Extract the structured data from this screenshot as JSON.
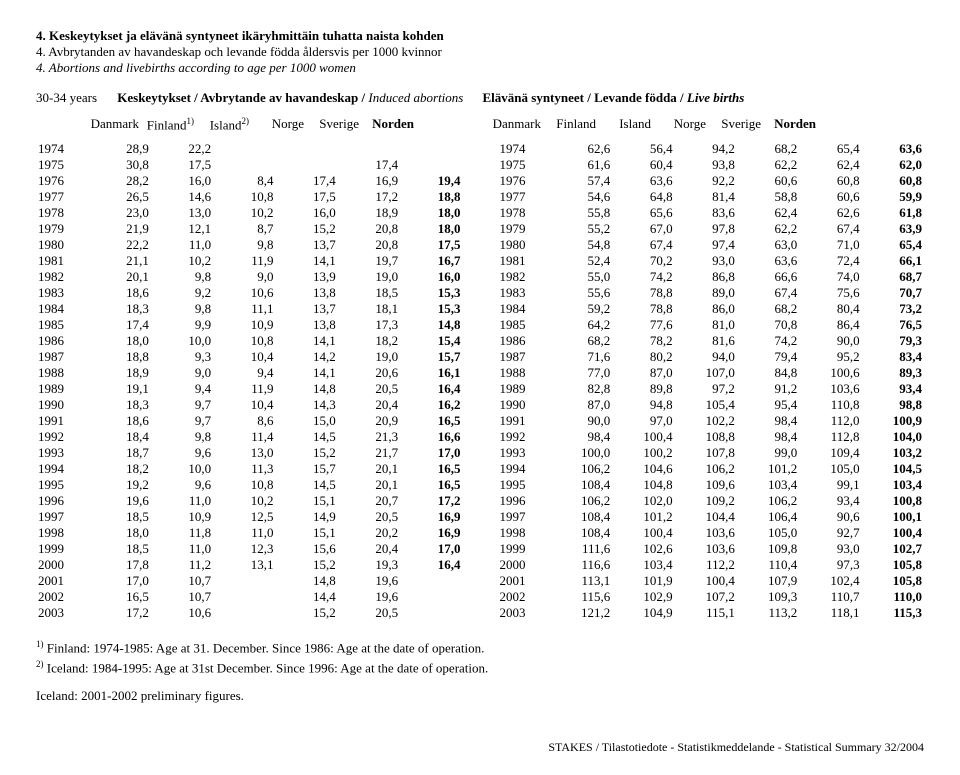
{
  "titles": {
    "fi": "4. Keskeytykset ja elävänä syntyneet ikäryhmittäin tuhatta naista kohden",
    "sv": "4. Avbrytanden av havandeskap och levande födda åldersvis per 1000 kvinnor",
    "en": "4. Abortions and livebirths according to age per 1000 women"
  },
  "subhead": {
    "age": "30-34 years",
    "left_plain": "Keskeytykset / Avbrytande av havandeskap / ",
    "left_italic": "Induced abortions",
    "right_plain": "Elävänä syntyneet / Levande födda / ",
    "right_italic": "Live births"
  },
  "columns": [
    "Danmark",
    "Finland",
    "Island",
    "Norge",
    "Sverige",
    "Norden",
    "Danmark",
    "Finland",
    "Island",
    "Norge",
    "Sverige",
    "Norden"
  ],
  "sup": {
    "fin": "1)",
    "isl": "2)"
  },
  "rows": [
    [
      "1974",
      "28,9",
      "22,2",
      "",
      "",
      "",
      "",
      "1974",
      "62,6",
      "56,4",
      "94,2",
      "68,2",
      "65,4",
      "63,6"
    ],
    [
      "1975",
      "30,8",
      "17,5",
      "",
      "",
      "17,4",
      "",
      "1975",
      "61,6",
      "60,4",
      "93,8",
      "62,2",
      "62,4",
      "62,0"
    ],
    [
      "1976",
      "28,2",
      "16,0",
      "8,4",
      "17,4",
      "16,9",
      "19,4",
      "1976",
      "57,4",
      "63,6",
      "92,2",
      "60,6",
      "60,8",
      "60,8"
    ],
    [
      "1977",
      "26,5",
      "14,6",
      "10,8",
      "17,5",
      "17,2",
      "18,8",
      "1977",
      "54,6",
      "64,8",
      "81,4",
      "58,8",
      "60,6",
      "59,9"
    ],
    [
      "1978",
      "23,0",
      "13,0",
      "10,2",
      "16,0",
      "18,9",
      "18,0",
      "1978",
      "55,8",
      "65,6",
      "83,6",
      "62,4",
      "62,6",
      "61,8"
    ],
    [
      "1979",
      "21,9",
      "12,1",
      "8,7",
      "15,2",
      "20,8",
      "18,0",
      "1979",
      "55,2",
      "67,0",
      "97,8",
      "62,2",
      "67,4",
      "63,9"
    ],
    [
      "1980",
      "22,2",
      "11,0",
      "9,8",
      "13,7",
      "20,8",
      "17,5",
      "1980",
      "54,8",
      "67,4",
      "97,4",
      "63,0",
      "71,0",
      "65,4"
    ],
    [
      "1981",
      "21,1",
      "10,2",
      "11,9",
      "14,1",
      "19,7",
      "16,7",
      "1981",
      "52,4",
      "70,2",
      "93,0",
      "63,6",
      "72,4",
      "66,1"
    ],
    [
      "1982",
      "20,1",
      "9,8",
      "9,0",
      "13,9",
      "19,0",
      "16,0",
      "1982",
      "55,0",
      "74,2",
      "86,8",
      "66,6",
      "74,0",
      "68,7"
    ],
    [
      "1983",
      "18,6",
      "9,2",
      "10,6",
      "13,8",
      "18,5",
      "15,3",
      "1983",
      "55,6",
      "78,8",
      "89,0",
      "67,4",
      "75,6",
      "70,7"
    ],
    [
      "1984",
      "18,3",
      "9,8",
      "11,1",
      "13,7",
      "18,1",
      "15,3",
      "1984",
      "59,2",
      "78,8",
      "86,0",
      "68,2",
      "80,4",
      "73,2"
    ],
    [
      "1985",
      "17,4",
      "9,9",
      "10,9",
      "13,8",
      "17,3",
      "14,8",
      "1985",
      "64,2",
      "77,6",
      "81,0",
      "70,8",
      "86,4",
      "76,5"
    ],
    [
      "1986",
      "18,0",
      "10,0",
      "10,8",
      "14,1",
      "18,2",
      "15,4",
      "1986",
      "68,2",
      "78,2",
      "81,6",
      "74,2",
      "90,0",
      "79,3"
    ],
    [
      "1987",
      "18,8",
      "9,3",
      "10,4",
      "14,2",
      "19,0",
      "15,7",
      "1987",
      "71,6",
      "80,2",
      "94,0",
      "79,4",
      "95,2",
      "83,4"
    ],
    [
      "1988",
      "18,9",
      "9,0",
      "9,4",
      "14,1",
      "20,6",
      "16,1",
      "1988",
      "77,0",
      "87,0",
      "107,0",
      "84,8",
      "100,6",
      "89,3"
    ],
    [
      "1989",
      "19,1",
      "9,4",
      "11,9",
      "14,8",
      "20,5",
      "16,4",
      "1989",
      "82,8",
      "89,8",
      "97,2",
      "91,2",
      "103,6",
      "93,4"
    ],
    [
      "1990",
      "18,3",
      "9,7",
      "10,4",
      "14,3",
      "20,4",
      "16,2",
      "1990",
      "87,0",
      "94,8",
      "105,4",
      "95,4",
      "110,8",
      "98,8"
    ],
    [
      "1991",
      "18,6",
      "9,7",
      "8,6",
      "15,0",
      "20,9",
      "16,5",
      "1991",
      "90,0",
      "97,0",
      "102,2",
      "98,4",
      "112,0",
      "100,9"
    ],
    [
      "1992",
      "18,4",
      "9,8",
      "11,4",
      "14,5",
      "21,3",
      "16,6",
      "1992",
      "98,4",
      "100,4",
      "108,8",
      "98,4",
      "112,8",
      "104,0"
    ],
    [
      "1993",
      "18,7",
      "9,6",
      "13,0",
      "15,2",
      "21,7",
      "17,0",
      "1993",
      "100,0",
      "100,2",
      "107,8",
      "99,0",
      "109,4",
      "103,2"
    ],
    [
      "1994",
      "18,2",
      "10,0",
      "11,3",
      "15,7",
      "20,1",
      "16,5",
      "1994",
      "106,2",
      "104,6",
      "106,2",
      "101,2",
      "105,0",
      "104,5"
    ],
    [
      "1995",
      "19,2",
      "9,6",
      "10,8",
      "14,5",
      "20,1",
      "16,5",
      "1995",
      "108,4",
      "104,8",
      "109,6",
      "103,4",
      "99,1",
      "103,4"
    ],
    [
      "1996",
      "19,6",
      "11,0",
      "10,2",
      "15,1",
      "20,7",
      "17,2",
      "1996",
      "106,2",
      "102,0",
      "109,2",
      "106,2",
      "93,4",
      "100,8"
    ],
    [
      "1997",
      "18,5",
      "10,9",
      "12,5",
      "14,9",
      "20,5",
      "16,9",
      "1997",
      "108,4",
      "101,2",
      "104,4",
      "106,4",
      "90,6",
      "100,1"
    ],
    [
      "1998",
      "18,0",
      "11,8",
      "11,0",
      "15,1",
      "20,2",
      "16,9",
      "1998",
      "108,4",
      "100,4",
      "103,6",
      "105,0",
      "92,7",
      "100,4"
    ],
    [
      "1999",
      "18,5",
      "11,0",
      "12,3",
      "15,6",
      "20,4",
      "17,0",
      "1999",
      "111,6",
      "102,6",
      "103,6",
      "109,8",
      "93,0",
      "102,7"
    ],
    [
      "2000",
      "17,8",
      "11,2",
      "13,1",
      "15,2",
      "19,3",
      "16,4",
      "2000",
      "116,6",
      "103,4",
      "112,2",
      "110,4",
      "97,3",
      "105,8"
    ],
    [
      "2001",
      "17,0",
      "10,7",
      "",
      "14,8",
      "19,6",
      "",
      "2001",
      "113,1",
      "101,9",
      "100,4",
      "107,9",
      "102,4",
      "105,8"
    ],
    [
      "2002",
      "16,5",
      "10,7",
      "",
      "14,4",
      "19,6",
      "",
      "2002",
      "115,6",
      "102,9",
      "107,2",
      "109,3",
      "110,7",
      "110,0"
    ],
    [
      "2003",
      "17,2",
      "10,6",
      "",
      "15,2",
      "20,5",
      "",
      "2003",
      "121,2",
      "104,9",
      "115,1",
      "113,2",
      "118,1",
      "115,3"
    ]
  ],
  "footnotes": {
    "f1a": " Finland: 1974-1985: Age at 31. December. Since 1986: Age at the date of operation.",
    "f2a": " Iceland: 1984-1995: Age at 31st December. Since 1996: Age at the date of operation.",
    "iceland": "Iceland: 2001-2002 preliminary figures."
  },
  "footer": "STAKES / Tilastotiedote - Statistikmeddelande - Statistical Summary 32/2004"
}
